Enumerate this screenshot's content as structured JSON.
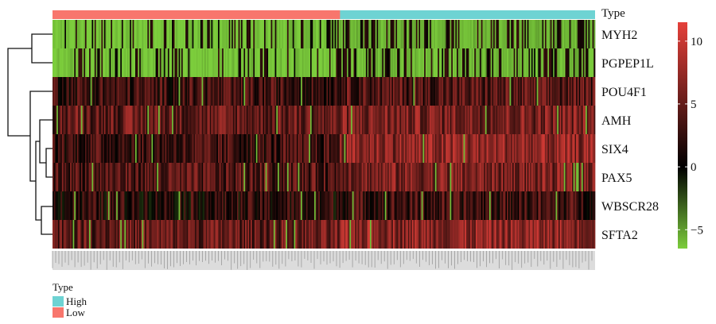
{
  "chart_data": {
    "type": "heatmap",
    "rows": [
      "MYH2",
      "PGPEP1L",
      "POU4F1",
      "AMH",
      "SIX4",
      "PAX5",
      "WBSCR28",
      "SFTA2"
    ],
    "annotation": {
      "title": "Type",
      "groups": [
        {
          "label": "Low",
          "color": "#f8766d",
          "fraction": 0.53
        },
        {
          "label": "High",
          "color": "#6ed3d3",
          "fraction": 0.47
        }
      ]
    },
    "colorbar": {
      "min": -6.5,
      "max": 11.5,
      "ticks": [
        10,
        5,
        0,
        -5
      ],
      "colors": [
        "#7ccd3c",
        "#000000",
        "#e5403a"
      ]
    },
    "row_means": {
      "MYH2": [
        -5.5,
        -5.0
      ],
      "PGPEP1L": [
        -5.5,
        -5.2
      ],
      "POU4F1": [
        3,
        4
      ],
      "AMH": [
        5,
        6
      ],
      "SIX4": [
        3,
        7
      ],
      "PAX5": [
        4,
        6
      ],
      "WBSCR28": [
        2,
        3
      ],
      "SFTA2": [
        5,
        7
      ]
    },
    "n_samples": 400
  },
  "legend": {
    "title": "Type",
    "items": [
      {
        "label": "High",
        "color": "#6ed3d3"
      },
      {
        "label": "Low",
        "color": "#f8766d"
      }
    ]
  }
}
